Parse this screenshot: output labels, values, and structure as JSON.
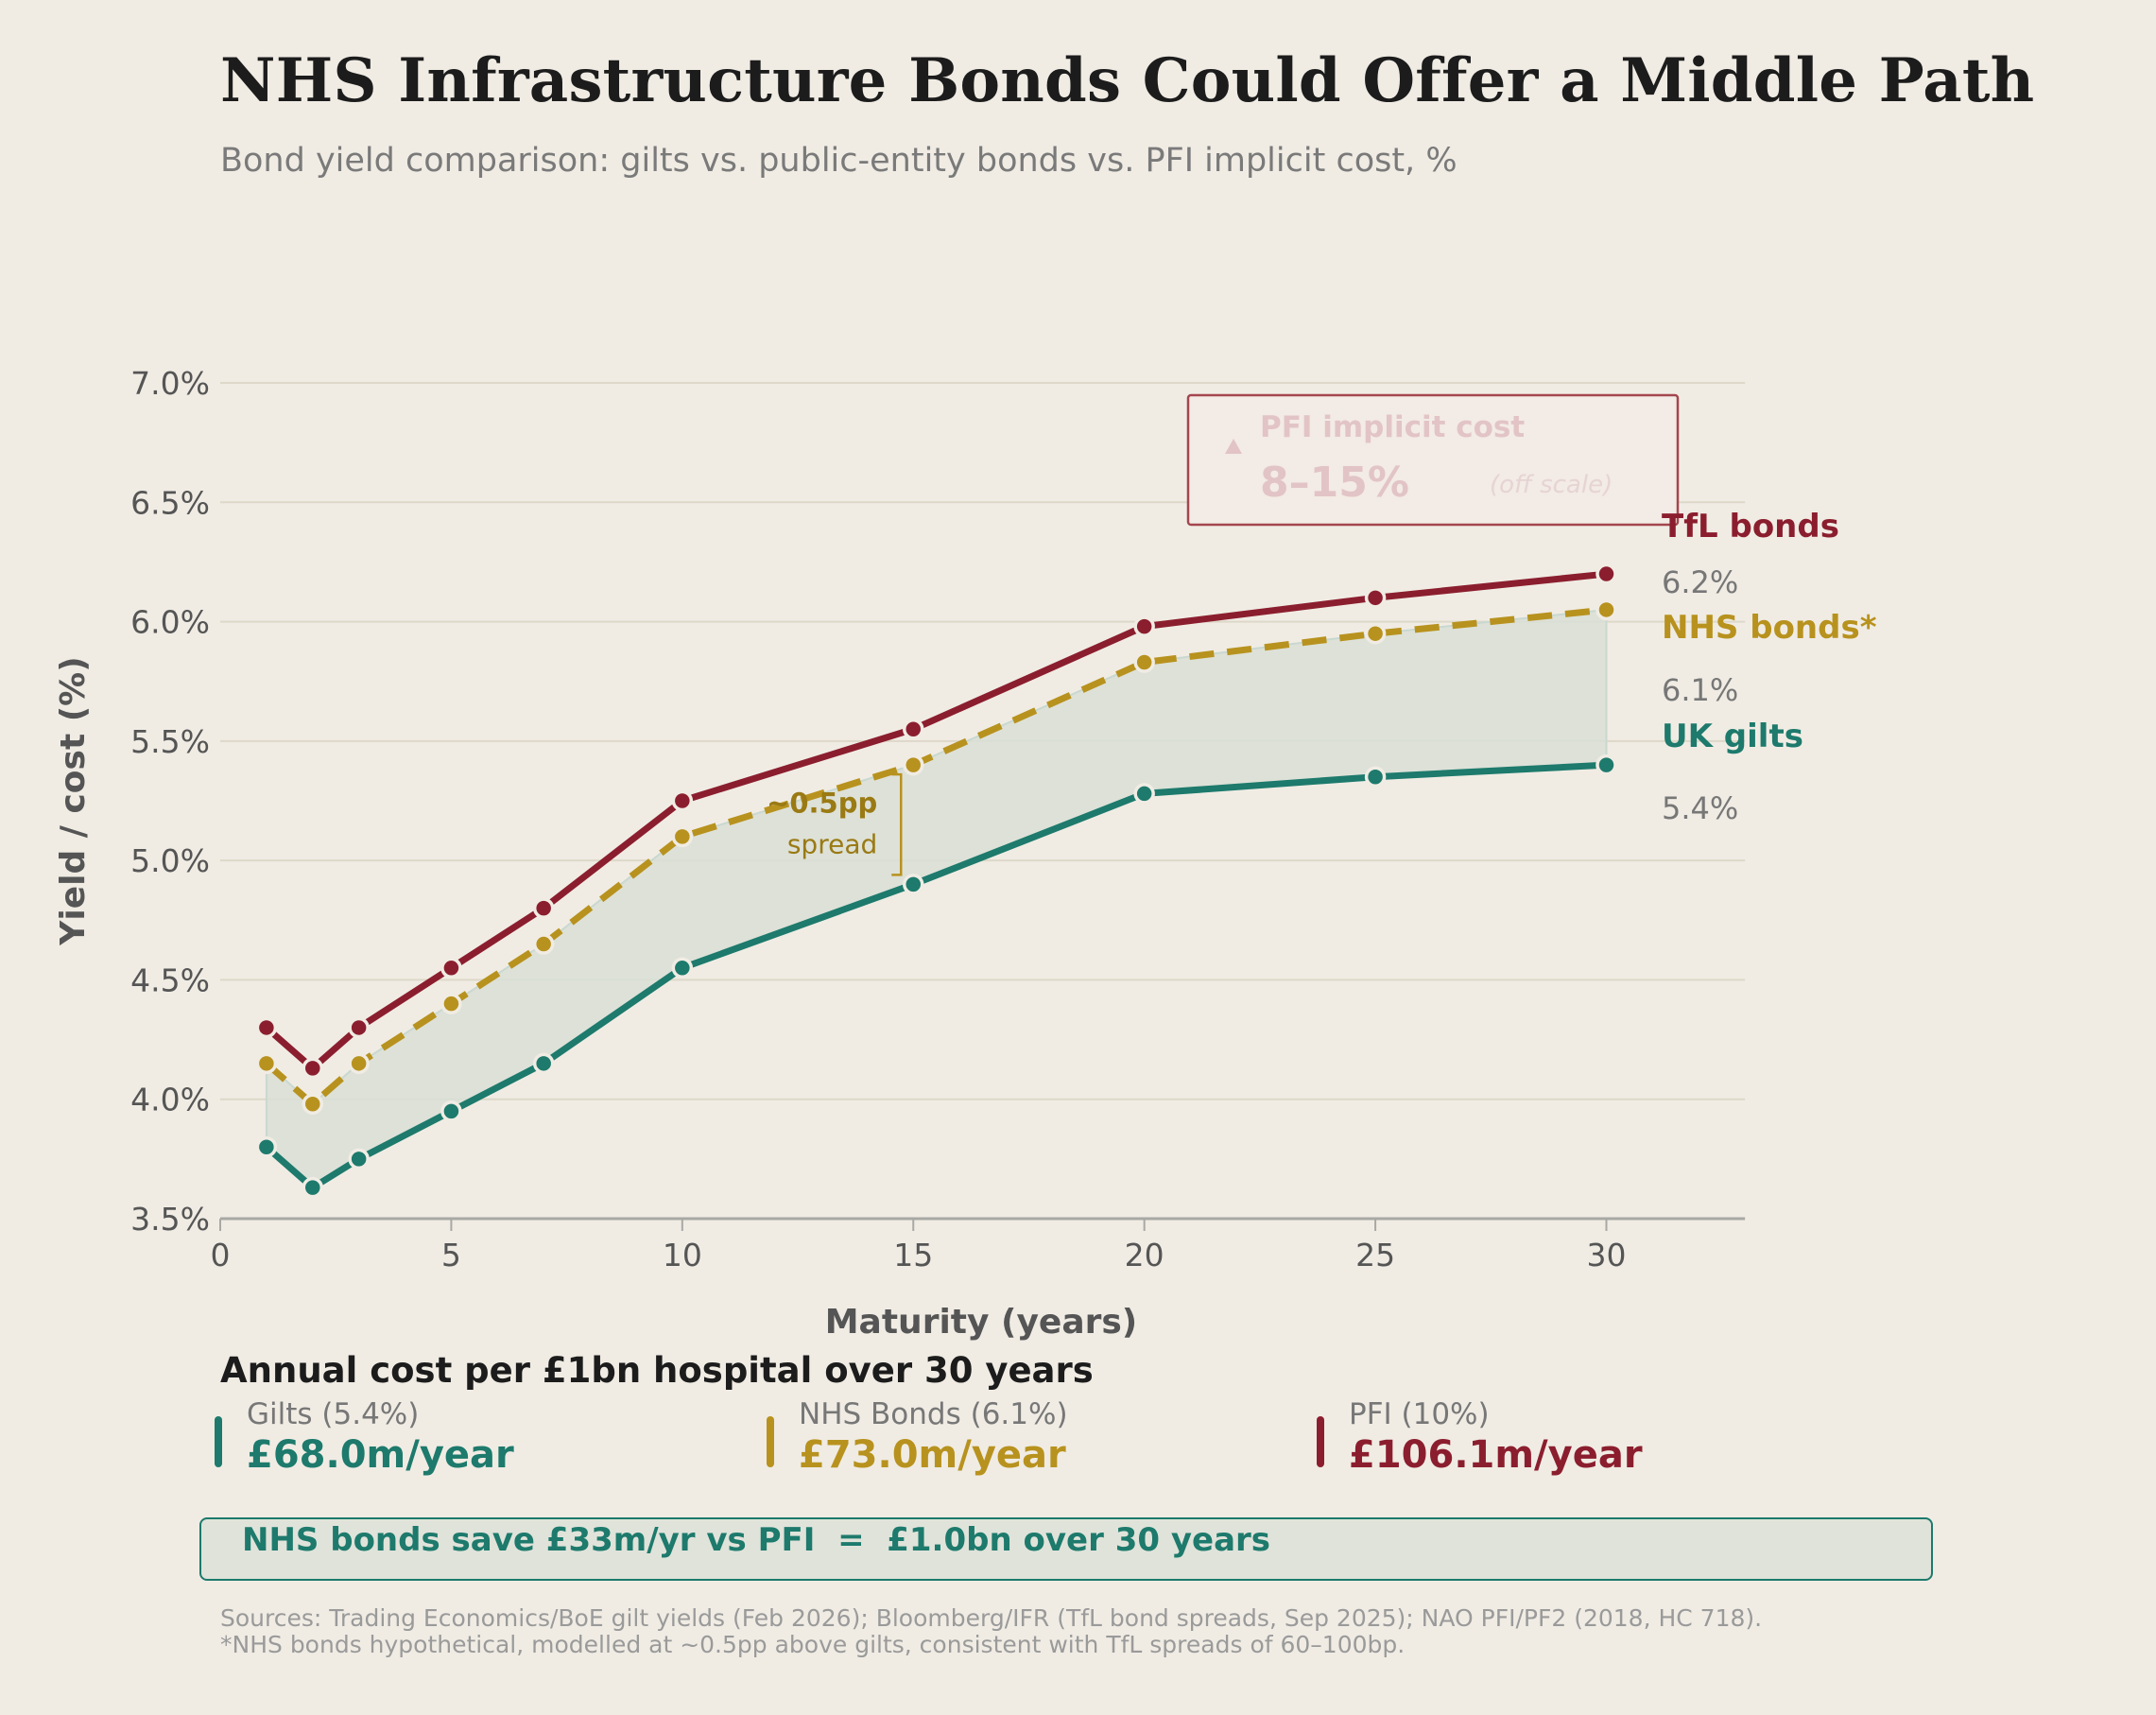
{
  "title": "NHS Infrastructure Bonds Could Offer a Middle Path",
  "subtitle": "Bond yield comparison: gilts vs. public-entity bonds vs. PFI implicit cost, %",
  "colors": {
    "background": "#f0ece4",
    "tfl": "#8b1e2e",
    "nhs": "#b8921e",
    "gilts": "#1d7a6c",
    "band_fill": "#d9dfd6",
    "pfi_box_text": "#e2c4c6"
  },
  "chart_data": {
    "type": "line",
    "title": "NHS Infrastructure Bonds Could Offer a Middle Path",
    "subtitle": "Bond yield comparison: gilts vs. public-entity bonds vs. PFI implicit cost, %",
    "xlabel": "Maturity (years)",
    "ylabel": "Yield / cost (%)",
    "xlim": [
      0,
      33
    ],
    "ylim": [
      3.5,
      7.0
    ],
    "x_ticks": [
      0,
      5,
      10,
      15,
      20,
      25,
      30
    ],
    "y_ticks": [
      3.5,
      4.0,
      4.5,
      5.0,
      5.5,
      6.0,
      6.5,
      7.0
    ],
    "y_tick_labels": [
      "3.5%",
      "4.0%",
      "4.5%",
      "5.0%",
      "5.5%",
      "6.0%",
      "6.5%",
      "7.0%"
    ],
    "grid": "horizontal",
    "x": [
      1,
      2,
      3,
      5,
      7,
      10,
      15,
      20,
      25,
      30
    ],
    "series": [
      {
        "name": "TfL bonds",
        "key": "tfl",
        "style": "solid",
        "end_label": "6.2%",
        "values": [
          4.3,
          4.13,
          4.3,
          4.55,
          4.8,
          5.25,
          5.55,
          5.98,
          6.1,
          6.2
        ]
      },
      {
        "name": "NHS bonds*",
        "key": "nhs",
        "style": "dashed",
        "end_label": "6.1%",
        "values": [
          4.15,
          3.98,
          4.15,
          4.4,
          4.65,
          5.1,
          5.4,
          5.83,
          5.95,
          6.05
        ]
      },
      {
        "name": "UK gilts",
        "key": "gilts",
        "style": "solid",
        "end_label": "5.4%",
        "values": [
          3.8,
          3.63,
          3.75,
          3.95,
          4.15,
          4.55,
          4.9,
          5.28,
          5.35,
          5.4
        ]
      }
    ],
    "shaded_band": {
      "between": [
        "gilts",
        "nhs"
      ]
    },
    "annotations": {
      "spread": {
        "label": "~0.5pp",
        "sublabel": "spread",
        "x": 15
      },
      "pfi_box": {
        "title": "PFI implicit cost",
        "value": "8–15%",
        "note": "(off scale)",
        "icon": "triangle-up-icon"
      }
    }
  },
  "cost_section": {
    "title": "Annual cost per £1bn hospital over 30 years",
    "items": [
      {
        "label": "Gilts (5.4%)",
        "value": "£68.0m/year",
        "key": "gilts"
      },
      {
        "label": "NHS Bonds (6.1%)",
        "value": "£73.0m/year",
        "key": "nhs"
      },
      {
        "label": "PFI (10%)",
        "value": "£106.1m/year",
        "key": "tfl"
      }
    ]
  },
  "savings": "NHS bonds save £33m/yr vs PFI  =  £1.0bn over 30 years",
  "sources": [
    "Sources: Trading Economics/BoE gilt yields (Feb 2026); Bloomberg/IFR (TfL bond spreads, Sep 2025); NAO PFI/PF2 (2018, HC 718).",
    "*NHS bonds hypothetical, modelled at ~0.5pp above gilts, consistent with TfL spreads of 60–100bp."
  ]
}
